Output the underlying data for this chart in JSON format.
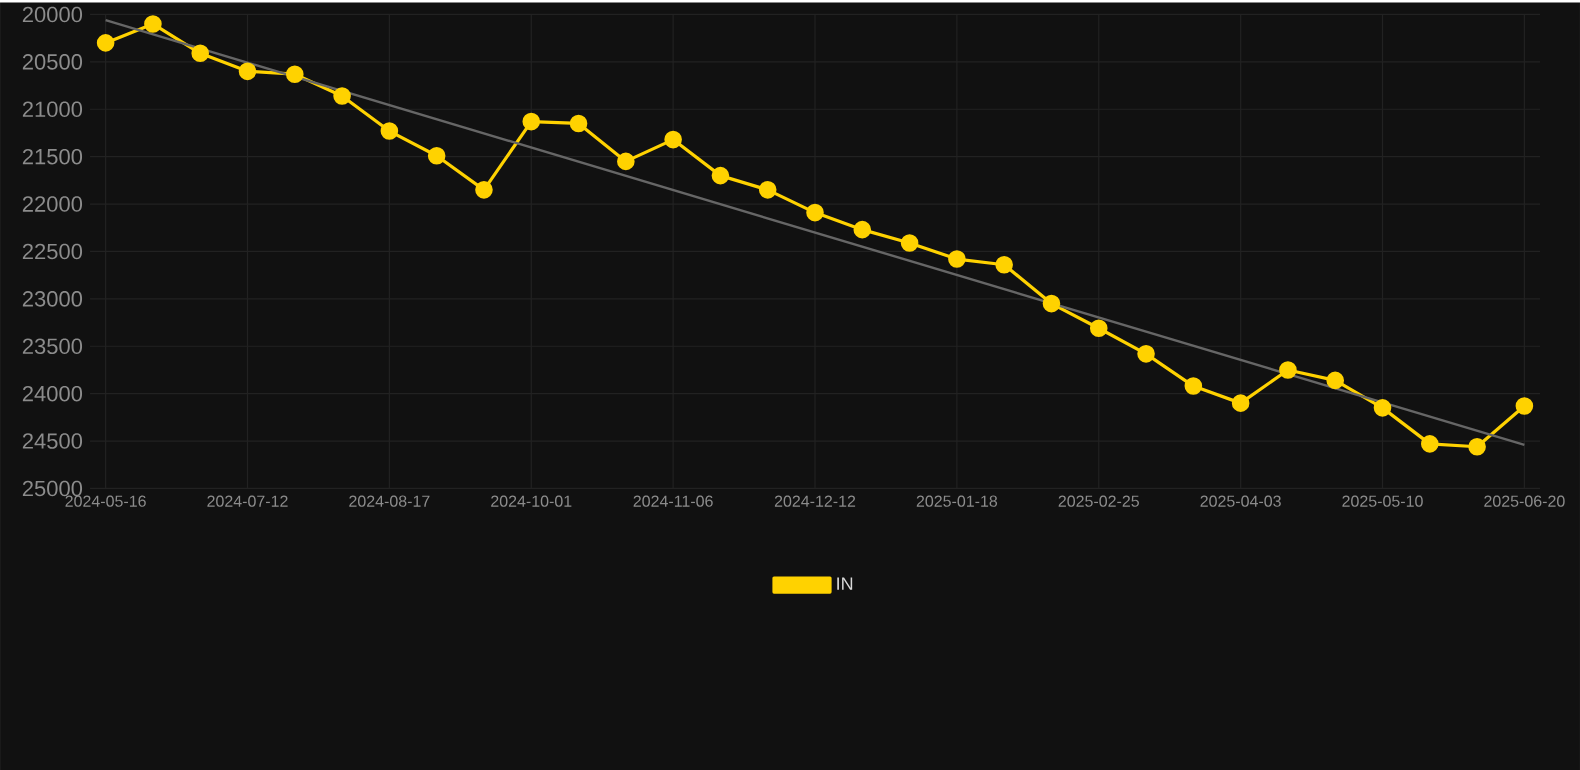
{
  "chart_data": {
    "type": "line",
    "categories": [
      "2024-05-16",
      null,
      null,
      "2024-07-12",
      null,
      null,
      "2024-08-17",
      null,
      null,
      "2024-10-01",
      null,
      null,
      "2024-11-06",
      null,
      null,
      "2024-12-12",
      null,
      null,
      "2025-01-18",
      null,
      null,
      "2025-02-25",
      null,
      null,
      "2025-04-03",
      null,
      null,
      "2025-05-10",
      null,
      null,
      "2025-06-20"
    ],
    "series": [
      {
        "name": "IN",
        "color": "#ffd200",
        "marker": "circle",
        "values": [
          20300,
          20100,
          20410,
          20600,
          20630,
          20860,
          21230,
          21490,
          21850,
          21130,
          21150,
          21550,
          21320,
          21700,
          21850,
          22090,
          22270,
          22410,
          22580,
          22640,
          23050,
          23310,
          23580,
          23920,
          24100,
          23750,
          23860,
          24150,
          24530,
          24560,
          24130
        ]
      },
      {
        "type": "line",
        "color": "#666666",
        "marker": "none",
        "values": [
          20060,
          null,
          null,
          null,
          null,
          null,
          null,
          null,
          null,
          null,
          null,
          null,
          null,
          null,
          null,
          null,
          null,
          null,
          null,
          null,
          null,
          null,
          null,
          null,
          null,
          null,
          null,
          null,
          null,
          null,
          24540
        ]
      }
    ],
    "ylim": [
      25000,
      20000
    ],
    "yticks": [
      20000,
      20500,
      21000,
      21500,
      22000,
      22500,
      23000,
      23500,
      24000,
      24500,
      25000
    ],
    "grid": true,
    "legend": "bottom"
  }
}
